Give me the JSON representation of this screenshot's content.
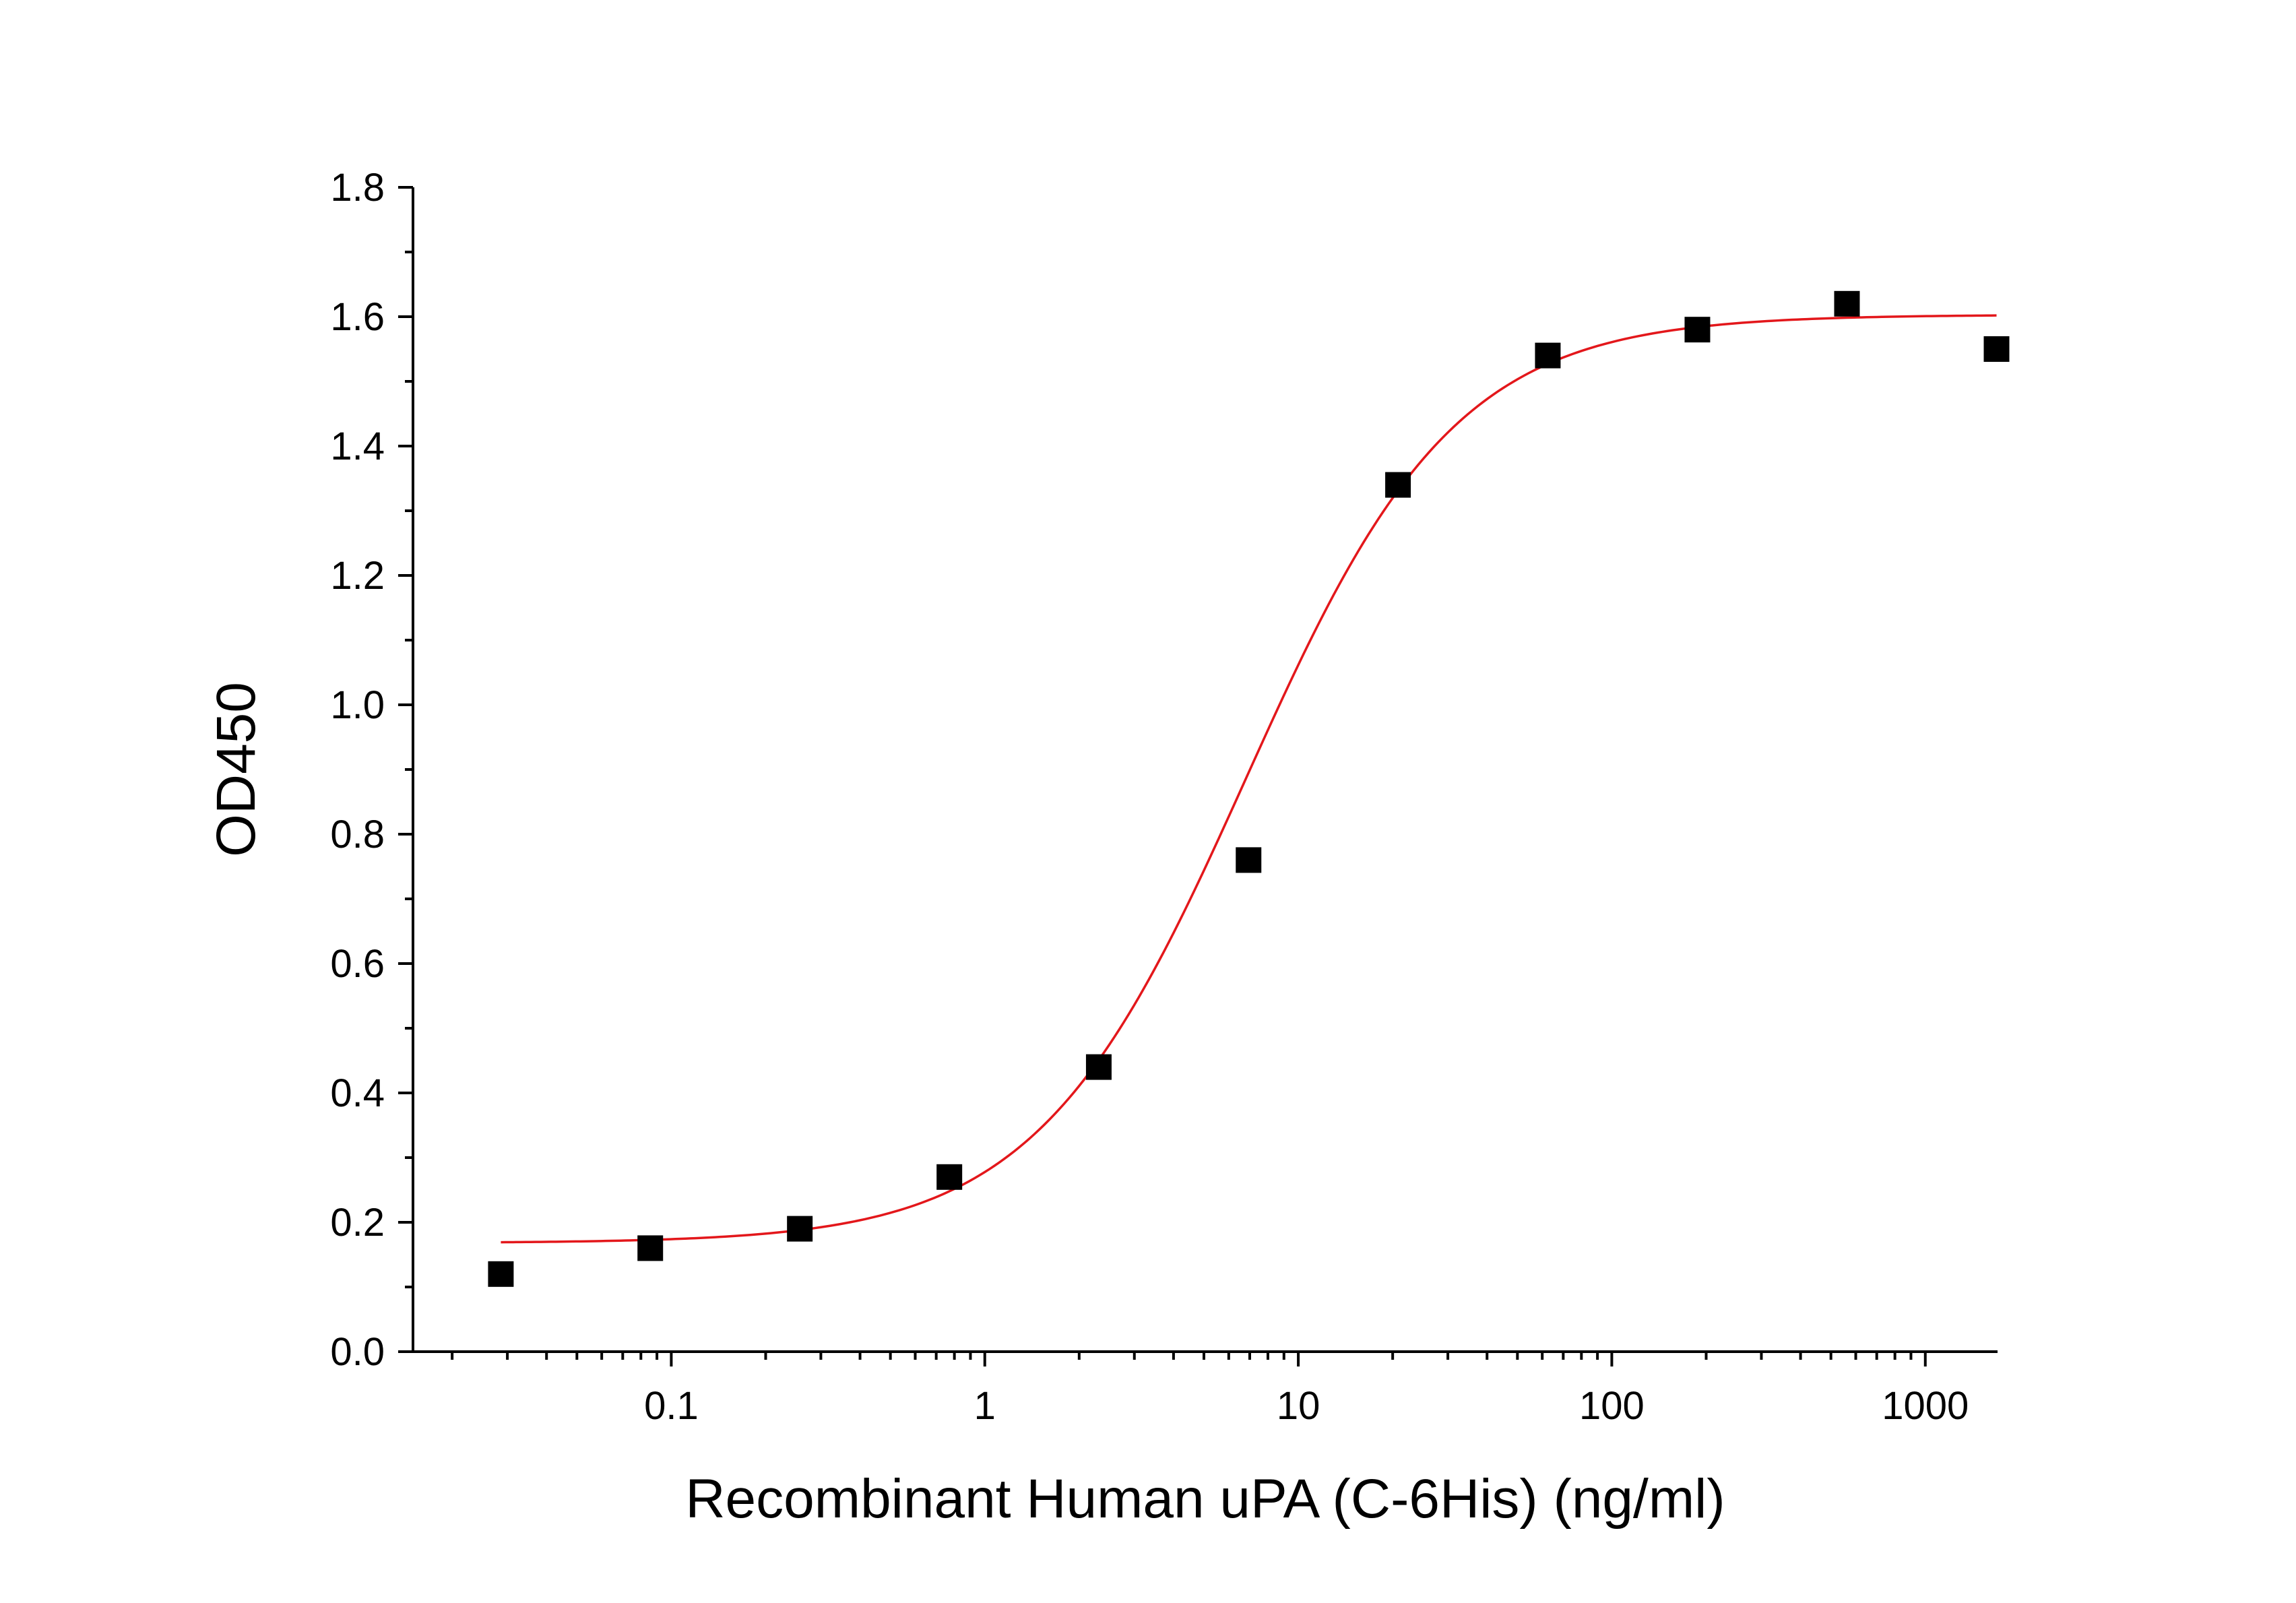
{
  "chart_data": {
    "type": "scatter",
    "title": "",
    "xlabel": "Recombinant Human uPA (C-6His) (ng/ml)",
    "ylabel": "OD450",
    "x_scale": "log",
    "xlim": [
      0.015,
      1700
    ],
    "ylim": [
      0,
      1.8
    ],
    "x_ticks": [
      0.1,
      1,
      10,
      100,
      1000
    ],
    "x_tick_labels": [
      "0.1",
      "1",
      "10",
      "100",
      "1000"
    ],
    "y_ticks": [
      0.0,
      0.2,
      0.4,
      0.6,
      0.8,
      1.0,
      1.2,
      1.4,
      1.6,
      1.8
    ],
    "y_tick_labels": [
      "0.0",
      "0.2",
      "0.4",
      "0.6",
      "0.8",
      "1.0",
      "1.2",
      "1.4",
      "1.6",
      "1.8"
    ],
    "grid": false,
    "legend": "none",
    "series": [
      {
        "kind": "points",
        "marker": "square",
        "color": "#000000",
        "x": [
          0.0286,
          0.0857,
          0.257,
          0.771,
          2.31,
          6.94,
          20.8,
          62.5,
          187.5,
          562.5,
          1687.5
        ],
        "y": [
          0.12,
          0.16,
          0.19,
          0.27,
          0.44,
          0.76,
          1.34,
          1.54,
          1.58,
          1.62,
          1.55
        ]
      },
      {
        "kind": "fit",
        "model": "4PL",
        "color": "#e3171b",
        "bottom": 0.168,
        "top": 1.603,
        "ec50": 6.8,
        "hill": 1.3,
        "x_range": [
          0.0286,
          1687.5
        ]
      }
    ]
  }
}
